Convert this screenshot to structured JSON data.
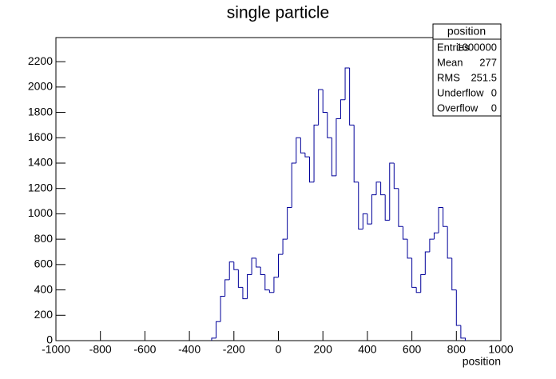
{
  "chart_data": {
    "type": "histogram",
    "title": "single particle",
    "x_label": "position",
    "bins": [
      -300,
      -280,
      -260,
      -240,
      -220,
      -200,
      -180,
      -160,
      -140,
      -120,
      -100,
      -80,
      -60,
      -40,
      -20,
      0,
      20,
      40,
      60,
      80,
      100,
      120,
      140,
      160,
      180,
      200,
      220,
      240,
      260,
      280,
      300,
      320,
      340,
      360,
      380,
      400,
      420,
      440,
      460,
      480,
      500,
      520,
      540,
      560,
      580,
      600,
      620,
      640,
      660,
      680,
      700,
      720,
      740,
      760,
      780,
      800,
      820,
      840
    ],
    "values": [
      20,
      150,
      350,
      480,
      620,
      560,
      420,
      330,
      520,
      650,
      580,
      520,
      400,
      380,
      500,
      680,
      800,
      1050,
      1400,
      1600,
      1480,
      1450,
      1250,
      1700,
      1980,
      1800,
      1600,
      1300,
      1750,
      1900,
      2150,
      1700,
      1250,
      880,
      1000,
      920,
      1150,
      1250,
      1150,
      950,
      1400,
      1200,
      900,
      800,
      650,
      420,
      380,
      520,
      700,
      800,
      850,
      1050,
      900,
      650,
      400,
      120,
      20
    ],
    "color": "#000099",
    "xlim": [
      -1000,
      1000
    ],
    "xticks": [
      -1000,
      -800,
      -600,
      -400,
      -200,
      0,
      200,
      400,
      600,
      800,
      1000
    ],
    "ylim": [
      0,
      2390
    ],
    "yticks": [
      0,
      200,
      400,
      600,
      800,
      1000,
      1200,
      1400,
      1600,
      1800,
      2000,
      2200
    ],
    "stats": {
      "title": "position",
      "rows": [
        [
          "Entries",
          1000000
        ],
        [
          "Mean",
          277
        ],
        [
          "RMS",
          251.5
        ],
        [
          "Underflow",
          0
        ],
        [
          "Overflow",
          0
        ]
      ]
    }
  }
}
